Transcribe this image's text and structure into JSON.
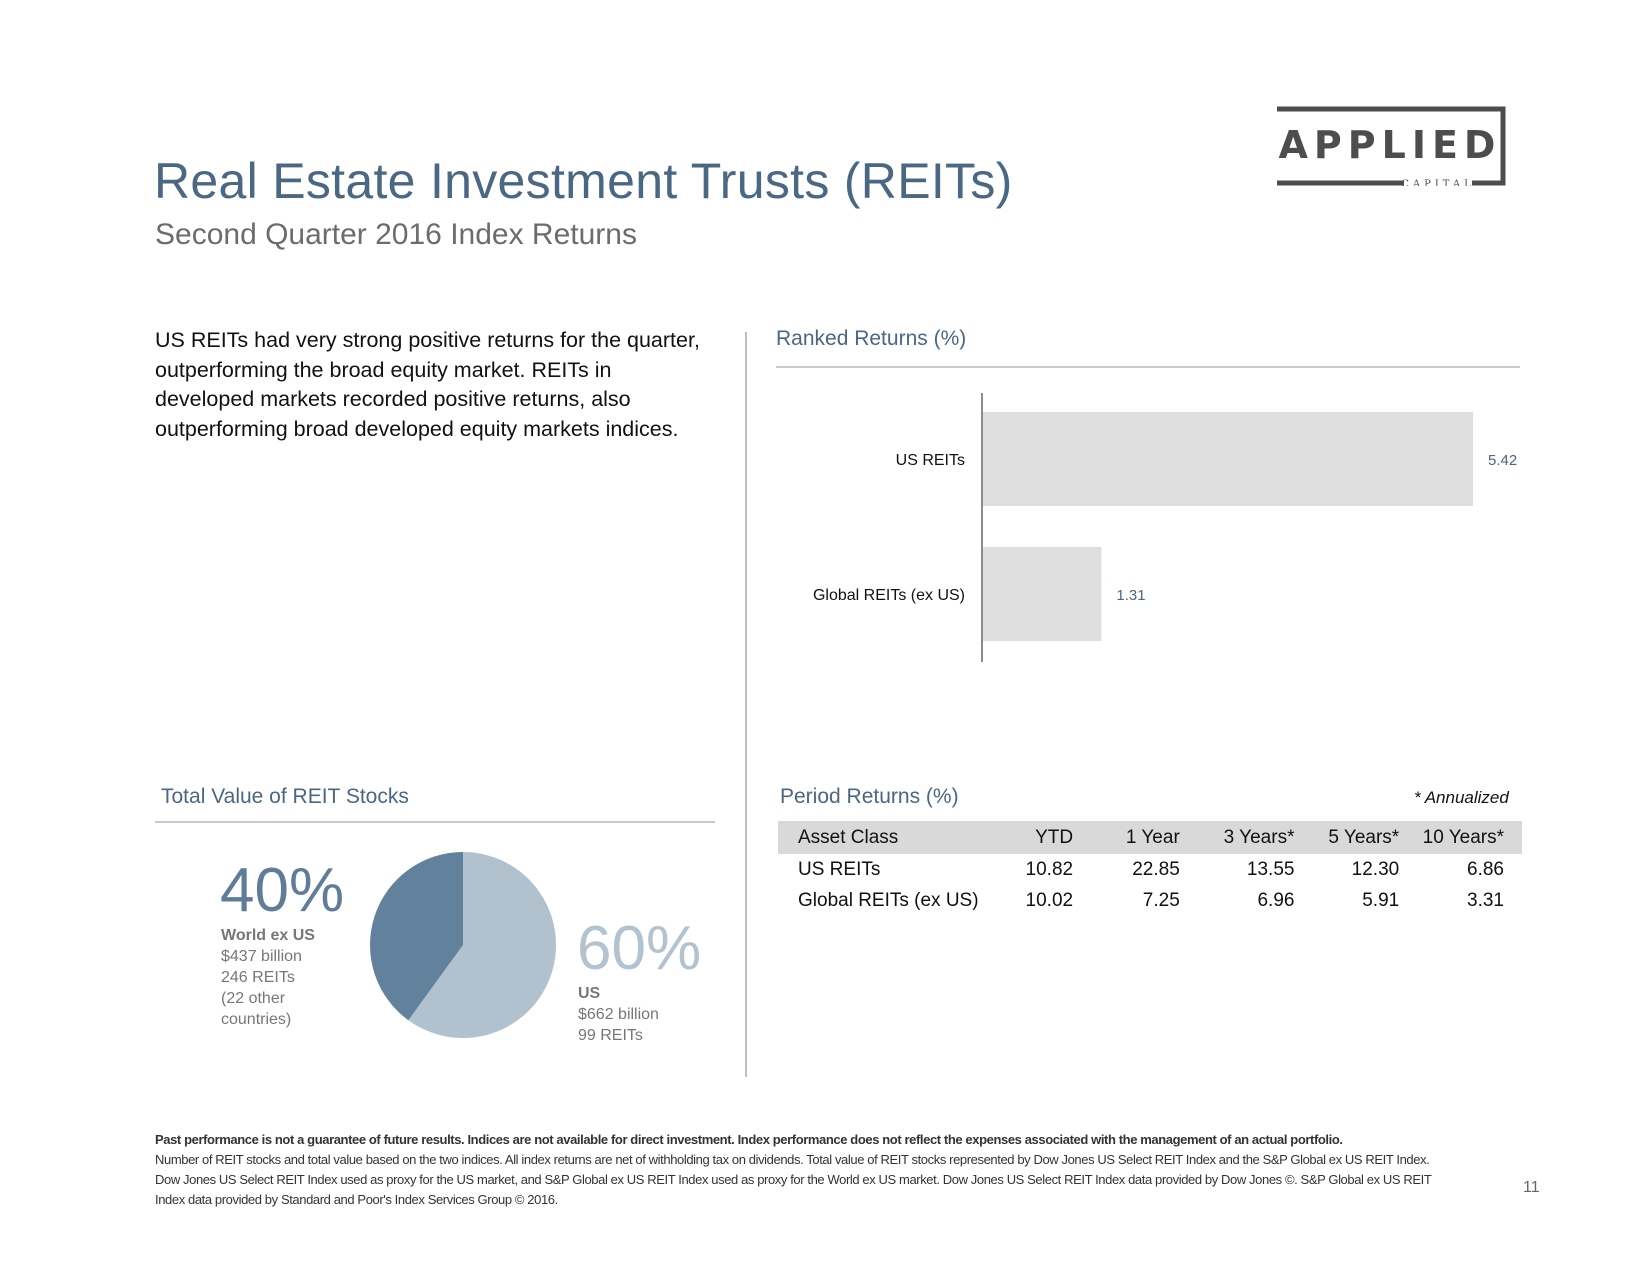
{
  "header": {
    "title": "Real Estate Investment Trusts (REITs)",
    "subtitle": "Second Quarter 2016 Index Returns"
  },
  "logo": {
    "text": "APPLIED",
    "subtext": "CAPITAL"
  },
  "intro": {
    "text": "US REITs had very strong positive returns for the quarter, outperforming the broad equity market. REITs in developed markets recorded positive returns, also outperforming broad developed equity markets indices."
  },
  "ranked": {
    "heading": "Ranked Returns (%)"
  },
  "total_value": {
    "heading": "Total Value of REIT Stocks",
    "world": {
      "pct": "40%",
      "title": "World ex US",
      "lines": [
        "$437 billion",
        "246 REITs",
        "(22 other",
        "countries)"
      ]
    },
    "us": {
      "pct": "60%",
      "title": "US",
      "lines": [
        "$662 billion",
        "99 REITs"
      ]
    }
  },
  "period": {
    "heading": "Period Returns (%)",
    "note": "* Annualized",
    "columns": [
      "Asset Class",
      "YTD",
      "1 Year",
      "3 Years*",
      "5 Years*",
      "10 Years*"
    ],
    "rows": [
      [
        "US REITs",
        "10.82",
        "22.85",
        "13.55",
        "12.30",
        "6.86"
      ],
      [
        "Global REITs (ex US)",
        "10.02",
        "7.25",
        "6.96",
        "5.91",
        "3.31"
      ]
    ]
  },
  "footer": {
    "bold": "Past performance is not a guarantee of future results. Indices are not available for direct investment. Index performance does not reflect the expenses associated with the management of an actual portfolio.",
    "text": "Number of REIT stocks and total value based on the two indices. All index returns are net of withholding tax on dividends. Total value of REIT stocks represented by Dow Jones US Select REIT Index and the S&P Global ex US REIT Index. Dow Jones US Select REIT Index used as proxy for the US market, and S&P Global ex US REIT Index used as proxy for the World ex US market. Dow Jones US Select REIT Index data provided by Dow Jones ©. S&P Global ex US REIT Index data provided by Standard and Poor's Index Services Group © 2016."
  },
  "page_number": "11",
  "colors": {
    "title": "#4a6784",
    "bar": "#dedede",
    "bar_value": "#4a6784",
    "pie_world": "#62819d",
    "pie_us": "#b1c1cd"
  },
  "chart_data": [
    {
      "type": "bar",
      "orientation": "horizontal",
      "title": "Ranked Returns (%)",
      "categories": [
        "US REITs",
        "Global REITs (ex US)"
      ],
      "values": [
        5.42,
        1.31
      ],
      "xlim": [
        0,
        5.42
      ]
    },
    {
      "type": "pie",
      "title": "Total Value of REIT Stocks",
      "labels": [
        "World ex US",
        "US"
      ],
      "values": [
        40,
        60
      ],
      "billions": [
        437,
        662
      ]
    }
  ]
}
